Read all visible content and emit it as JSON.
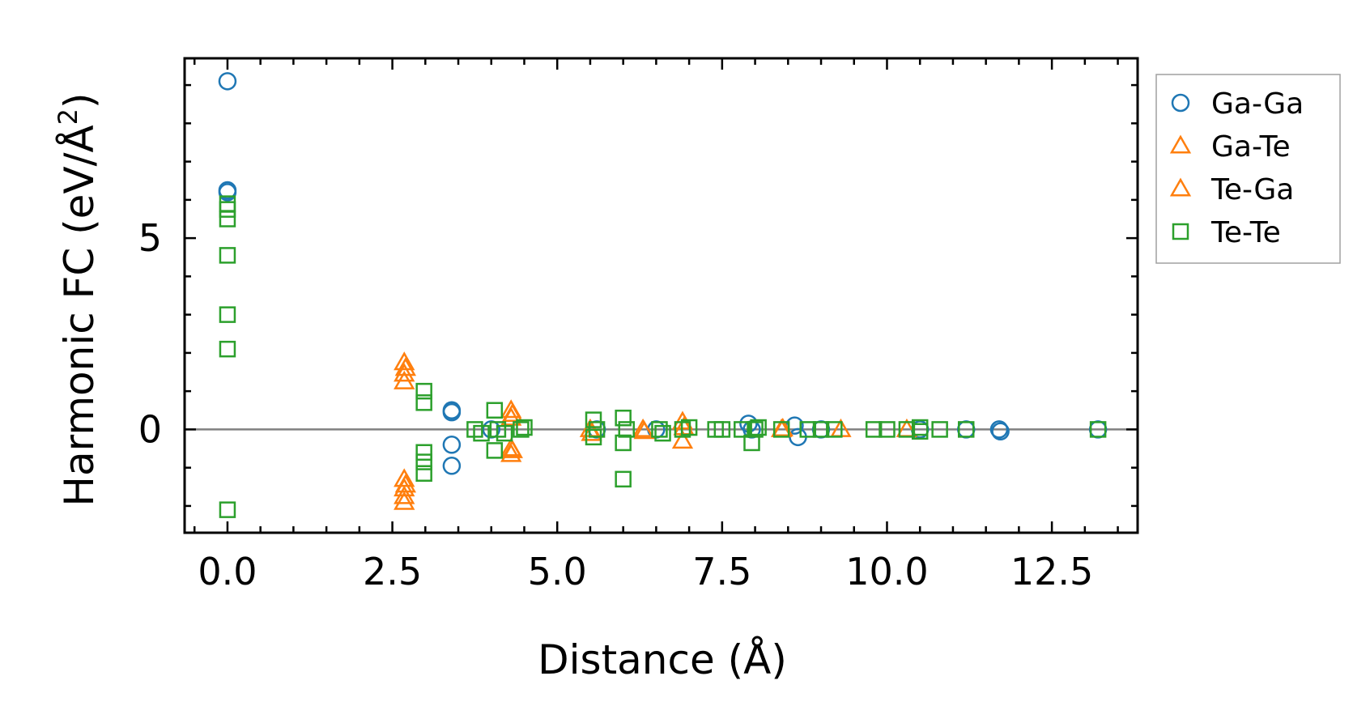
{
  "chart_data": {
    "type": "scatter",
    "title": "",
    "xlabel": "Distance (Å)",
    "ylabel": "Harmonic FC (eV/Å",
    "ylabel_sup": "2",
    "ylabel_end": ")",
    "xlim": [
      -0.65,
      13.8
    ],
    "ylim": [
      -2.7,
      9.7
    ],
    "x_ticks": [
      0.0,
      2.5,
      5.0,
      7.5,
      10.0,
      12.5
    ],
    "x_tick_labels": [
      "0.0",
      "2.5",
      "5.0",
      "7.5",
      "10.0",
      "12.5"
    ],
    "y_ticks": [
      0,
      5
    ],
    "y_tick_labels": [
      "0",
      "5"
    ],
    "reference_line_y": 0,
    "grid": false,
    "legend_position": "outside-right-top",
    "series": [
      {
        "name": "Ga-Ga",
        "marker": "circle",
        "color": "#1f77b4",
        "points": [
          [
            0,
            9.1
          ],
          [
            0,
            6.25
          ],
          [
            0,
            6.2
          ],
          [
            3.4,
            0.5
          ],
          [
            3.4,
            0.45
          ],
          [
            3.4,
            -0.4
          ],
          [
            3.4,
            -0.95
          ],
          [
            4.0,
            0.0
          ],
          [
            5.6,
            0.0
          ],
          [
            6.5,
            0.0
          ],
          [
            7.9,
            0.15
          ],
          [
            7.95,
            0.0
          ],
          [
            8.6,
            0.1
          ],
          [
            8.65,
            -0.2
          ],
          [
            9.0,
            0.0
          ],
          [
            10.5,
            0.0
          ],
          [
            11.2,
            0.0
          ],
          [
            11.7,
            0.0
          ],
          [
            11.72,
            -0.05
          ],
          [
            13.2,
            0.0
          ]
        ]
      },
      {
        "name": "Ga-Te",
        "marker": "triangle",
        "color": "#ff7f0e",
        "points": [
          [
            2.68,
            1.75
          ],
          [
            2.68,
            1.45
          ],
          [
            2.68,
            1.25
          ],
          [
            2.68,
            -1.3
          ],
          [
            2.68,
            -1.55
          ],
          [
            2.68,
            -1.75
          ],
          [
            2.68,
            -1.9
          ],
          [
            4.3,
            0.5
          ],
          [
            4.3,
            0.3
          ],
          [
            4.3,
            -0.5
          ],
          [
            4.3,
            -0.65
          ],
          [
            5.5,
            0.0
          ],
          [
            6.3,
            0.0
          ],
          [
            6.9,
            0.2
          ],
          [
            6.9,
            -0.3
          ],
          [
            8.4,
            0.0
          ],
          [
            9.3,
            0.0
          ],
          [
            10.3,
            0.0
          ]
        ]
      },
      {
        "name": "Te-Ga",
        "marker": "triangle",
        "color": "#ff7f0e",
        "points": [
          [
            2.7,
            1.6
          ],
          [
            2.7,
            -1.45
          ],
          [
            4.32,
            0.4
          ],
          [
            4.32,
            -0.55
          ],
          [
            5.52,
            -0.1
          ],
          [
            6.32,
            -0.05
          ],
          [
            6.92,
            0.05
          ],
          [
            8.42,
            0.02
          ]
        ]
      },
      {
        "name": "Te-Te",
        "marker": "square",
        "color": "#2ca02c",
        "points": [
          [
            0,
            5.9
          ],
          [
            0,
            5.75
          ],
          [
            0,
            5.5
          ],
          [
            0,
            4.55
          ],
          [
            0,
            3.0
          ],
          [
            0,
            2.1
          ],
          [
            0,
            -2.1
          ],
          [
            2.98,
            1.0
          ],
          [
            2.98,
            0.7
          ],
          [
            2.98,
            -0.6
          ],
          [
            2.98,
            -0.85
          ],
          [
            2.98,
            -1.15
          ],
          [
            3.75,
            0.0
          ],
          [
            3.85,
            -0.1
          ],
          [
            4.05,
            0.5
          ],
          [
            4.05,
            -0.55
          ],
          [
            4.1,
            0.0
          ],
          [
            4.2,
            -0.1
          ],
          [
            4.45,
            0.0
          ],
          [
            4.5,
            0.05
          ],
          [
            5.55,
            0.25
          ],
          [
            5.55,
            -0.2
          ],
          [
            5.6,
            0.0
          ],
          [
            6.0,
            0.3
          ],
          [
            6.0,
            -0.35
          ],
          [
            6.0,
            -1.3
          ],
          [
            6.05,
            0.0
          ],
          [
            6.55,
            0.0
          ],
          [
            6.6,
            -0.1
          ],
          [
            6.9,
            0.0
          ],
          [
            7.0,
            0.05
          ],
          [
            7.4,
            0.0
          ],
          [
            7.5,
            0.0
          ],
          [
            7.8,
            0.0
          ],
          [
            7.95,
            -0.35
          ],
          [
            8.0,
            0.0
          ],
          [
            8.05,
            0.05
          ],
          [
            8.4,
            0.0
          ],
          [
            8.8,
            0.0
          ],
          [
            9.0,
            0.0
          ],
          [
            9.2,
            0.0
          ],
          [
            9.8,
            0.0
          ],
          [
            10.0,
            0.0
          ],
          [
            10.3,
            0.0
          ],
          [
            10.5,
            -0.05
          ],
          [
            10.5,
            0.05
          ],
          [
            10.8,
            0.0
          ],
          [
            11.2,
            0.0
          ],
          [
            13.2,
            0.0
          ]
        ]
      }
    ]
  },
  "legend": {
    "items": [
      {
        "label": "Ga-Ga",
        "marker": "circle",
        "color": "#1f77b4"
      },
      {
        "label": "Ga-Te",
        "marker": "triangle",
        "color": "#ff7f0e"
      },
      {
        "label": "Te-Ga",
        "marker": "triangle",
        "color": "#ff7f0e"
      },
      {
        "label": "Te-Te",
        "marker": "square",
        "color": "#2ca02c"
      }
    ]
  }
}
